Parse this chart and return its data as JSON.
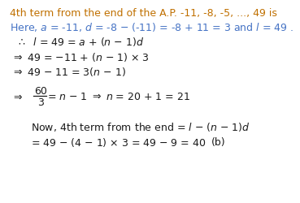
{
  "bg_color": "#ffffff",
  "fig_width": 3.69,
  "fig_height": 2.51,
  "dpi": 100,
  "title_color": "#c07000",
  "here_color": "#4472c4",
  "black": "#1a1a1a",
  "fontsize": 9.0,
  "small_fontsize": 8.5
}
